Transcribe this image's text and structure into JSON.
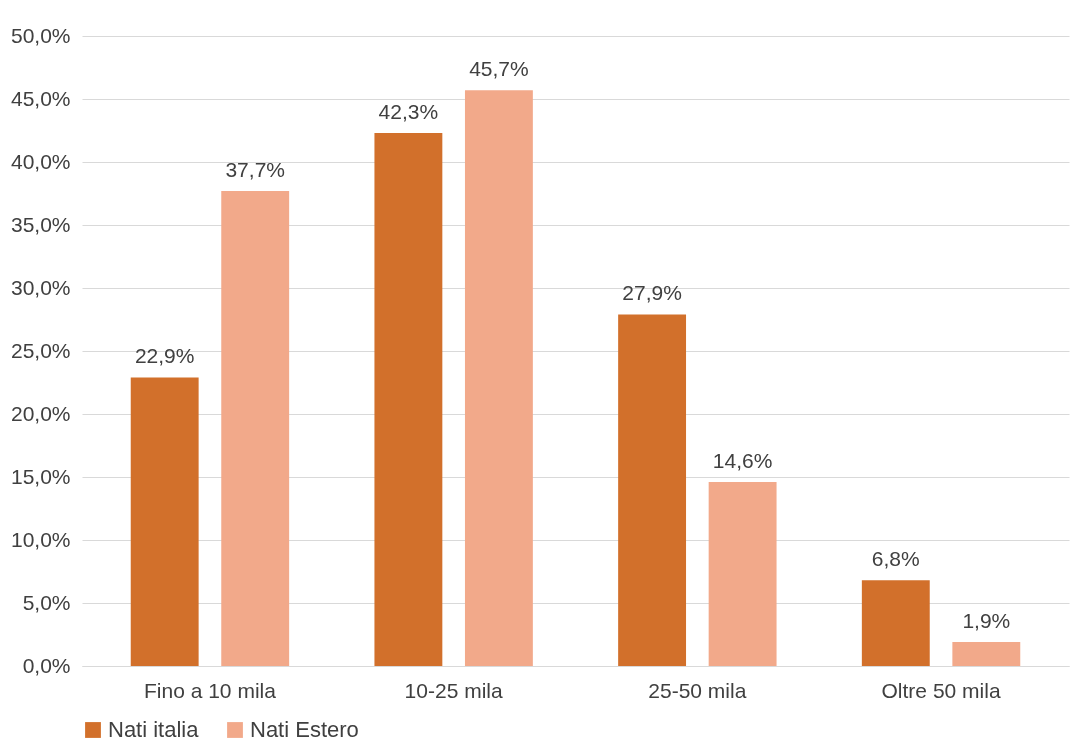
{
  "chart_data": {
    "type": "bar",
    "categories": [
      "Fino a 10 mila",
      "10-25 mila",
      "25-50 mila",
      "Oltre 50 mila"
    ],
    "series": [
      {
        "name": "Nati italia",
        "color": "#d2702b",
        "values": [
          22.9,
          42.3,
          27.9,
          6.8
        ],
        "value_labels": [
          "22,9%",
          "42,3%",
          "27,9%",
          "6,8%"
        ]
      },
      {
        "name": "Nati Estero",
        "color": "#f2a98a",
        "values": [
          37.7,
          45.7,
          14.6,
          1.9
        ],
        "value_labels": [
          "37,7%",
          "45,7%",
          "14,6%",
          "1,9%"
        ]
      }
    ],
    "ylim": [
      0,
      50
    ],
    "yticks": [
      {
        "value": 0,
        "label": "0,0%"
      },
      {
        "value": 5,
        "label": "5,0%"
      },
      {
        "value": 10,
        "label": "10,0%"
      },
      {
        "value": 15,
        "label": "15,0%"
      },
      {
        "value": 20,
        "label": "20,0%"
      },
      {
        "value": 25,
        "label": "25,0%"
      },
      {
        "value": 30,
        "label": "30,0%"
      },
      {
        "value": 35,
        "label": "35,0%"
      },
      {
        "value": 40,
        "label": "40,0%"
      },
      {
        "value": 45,
        "label": "45,0%"
      },
      {
        "value": 50,
        "label": "50,0%"
      }
    ],
    "grid": "y",
    "legend": "bottom"
  }
}
